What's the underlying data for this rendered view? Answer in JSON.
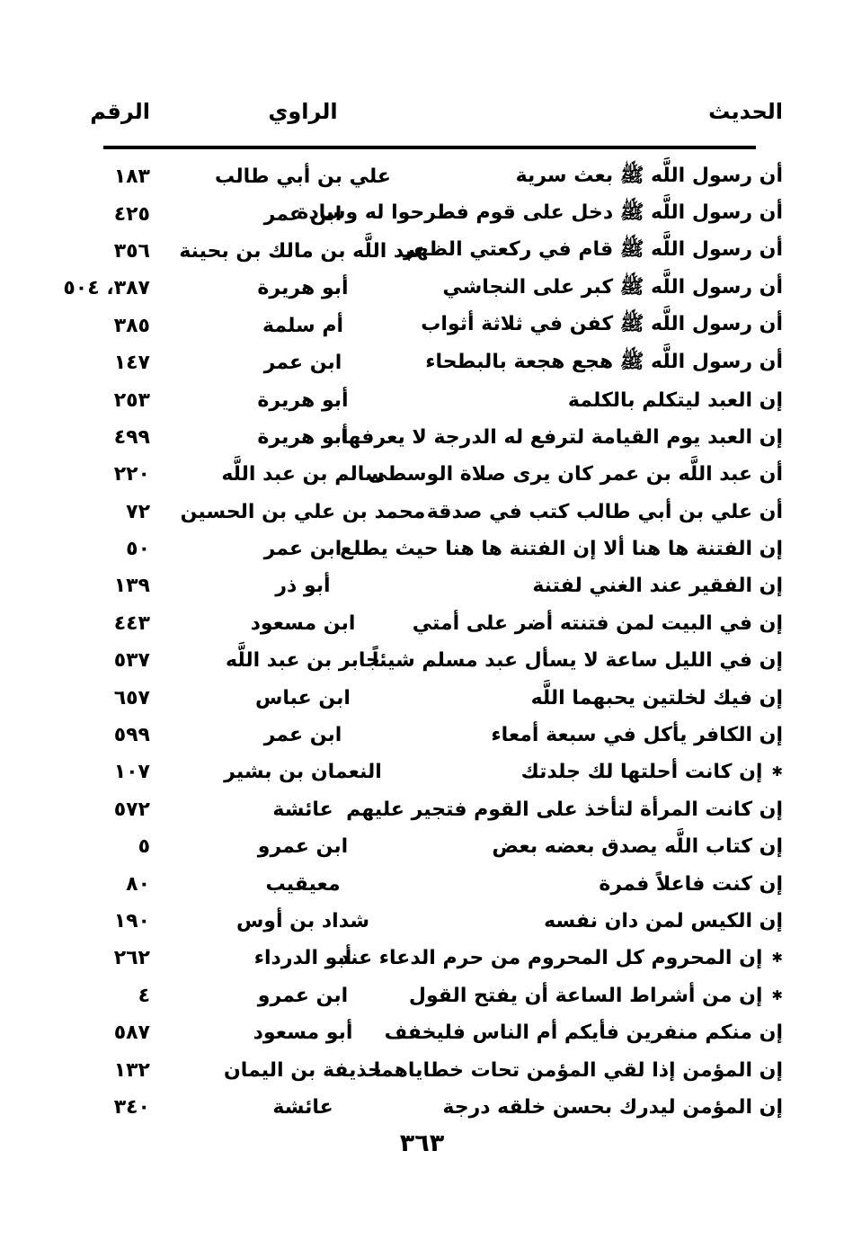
{
  "page": {
    "number": "٣٦٣"
  },
  "colors": {
    "text": "#000000",
    "background": "#ffffff",
    "divider": "#000000"
  },
  "table": {
    "headers": {
      "hadith": "الحديث",
      "narrator": "الراوي",
      "number": "الرقم"
    },
    "star_marker": "✱",
    "rows": [
      {
        "hadith": "أن رسول اللَّه ﷺ بعث سرية",
        "narrator": "علي بن أبي طالب",
        "number": "١٨٣",
        "star": false
      },
      {
        "hadith": "أن رسول اللَّه ﷺ دخل على قوم فطرحوا له وسادة",
        "narrator": "ابن عمر",
        "number": "٤٢٥",
        "star": false
      },
      {
        "hadith": "أن رسول اللَّه ﷺ قام في ركعتي الظهر",
        "narrator": "عبد اللَّه بن مالك بن بحينة",
        "number": "٣٥٦",
        "star": false
      },
      {
        "hadith": "أن رسول اللَّه ﷺ كبر على النجاشي",
        "narrator": "أبو هريرة",
        "number": "٣٨٧، ٥٠٤",
        "star": false
      },
      {
        "hadith": "أن رسول اللَّه ﷺ كفن في ثلاثة أثواب",
        "narrator": "أم سلمة",
        "number": "٣٨٥",
        "star": false
      },
      {
        "hadith": "أن رسول اللَّه ﷺ هجع هجعة بالبطحاء",
        "narrator": "ابن عمر",
        "number": "١٤٧",
        "star": false
      },
      {
        "hadith": "إن العبد ليتكلم بالكلمة",
        "narrator": "أبو هريرة",
        "number": "٢٥٣",
        "star": false
      },
      {
        "hadith": "إن العبد يوم القيامة لترفع له الدرجة لا يعرفها",
        "narrator": "أبو هريرة",
        "number": "٤٩٩",
        "star": false
      },
      {
        "hadith": "أن عبد اللَّه بن عمر كان يرى صلاة الوسطى",
        "narrator": "سالم بن عبد اللَّه",
        "number": "٢٢٠",
        "star": false
      },
      {
        "hadith": "أن علي بن أبي طالب كتب في صدقة",
        "narrator": "محمد بن علي بن الحسين",
        "number": "٧٢",
        "star": false
      },
      {
        "hadith": "إن الفتنة ها هنا ألا إن الفتنة ها هنا حيث يطلع",
        "narrator": "ابن عمر",
        "number": "٥٠",
        "star": false
      },
      {
        "hadith": "إن الفقير عند الغني لفتنة",
        "narrator": "أبو ذر",
        "number": "١٣٩",
        "star": false
      },
      {
        "hadith": "إن في البيت لمن فتنته أضر على أمتي",
        "narrator": "ابن مسعود",
        "number": "٤٤٣",
        "star": false
      },
      {
        "hadith": "إن في الليل ساعة لا يسأل عبد مسلم شيئاً",
        "narrator": "جابر بن عبد اللَّه",
        "number": "٥٣٧",
        "star": false
      },
      {
        "hadith": "إن فيك لخلتين يحبهما اللَّه",
        "narrator": "ابن عباس",
        "number": "٦٥٧",
        "star": false
      },
      {
        "hadith": "إن الكافر يأكل في سبعة أمعاء",
        "narrator": "ابن عمر",
        "number": "٥٩٩",
        "star": false
      },
      {
        "hadith": "إن كانت أحلتها لك جلدتك",
        "narrator": "النعمان بن بشير",
        "number": "١٠٧",
        "star": true
      },
      {
        "hadith": "إن كانت المرأة لتأخذ على القوم فتجير عليهم",
        "narrator": "عائشة",
        "number": "٥٧٢",
        "star": false
      },
      {
        "hadith": "إن كتاب اللَّه يصدق بعضه بعض",
        "narrator": "ابن عمرو",
        "number": "٥",
        "star": false
      },
      {
        "hadith": "إن كنت فاعلاً فمرة",
        "narrator": "معيقيب",
        "number": "٨٠",
        "star": false
      },
      {
        "hadith": "إن الكيس لمن دان نفسه",
        "narrator": "شداد بن أوس",
        "number": "١٩٠",
        "star": false
      },
      {
        "hadith": "إن المحروم كل المحروم من حرم الدعاء عند",
        "narrator": "أبو الدرداء",
        "number": "٢٦٢",
        "star": true
      },
      {
        "hadith": "إن من أشراط الساعة أن يفتح القول",
        "narrator": "ابن عمرو",
        "number": "٤",
        "star": true
      },
      {
        "hadith": "إن منكم منفرين فأيكم أم الناس فليخفف",
        "narrator": "أبو مسعود",
        "number": "٥٨٧",
        "star": false
      },
      {
        "hadith": "إن المؤمن إذا لقي المؤمن تحات خطاياهما",
        "narrator": "حذيفة بن اليمان",
        "number": "١٣٢",
        "star": false
      },
      {
        "hadith": "إن المؤمن ليدرك بحسن خلقه درجة",
        "narrator": "عائشة",
        "number": "٣٤٠",
        "star": false
      }
    ]
  }
}
